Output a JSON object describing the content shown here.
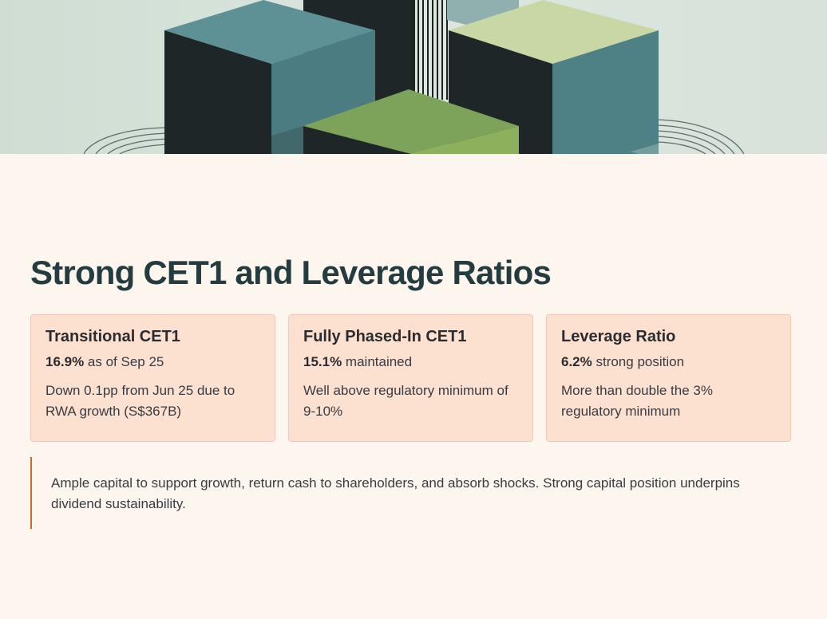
{
  "hero": {
    "image_name": "isometric-cubes-illustration",
    "colors": {
      "dark": "#1f2628",
      "teal": "#4e8186",
      "teal_light": "#6b9b9c",
      "green": "#7da35a",
      "green_light": "#c9d7a5",
      "background": "#d6e2da"
    }
  },
  "main": {
    "title": "Strong CET1 and Leverage Ratios",
    "cards": [
      {
        "heading": "Transitional CET1",
        "value": "16.9%",
        "value_suffix": " as of Sep 25",
        "description": "Down 0.1pp from Jun 25 due to RWA growth (S$367B)"
      },
      {
        "heading": "Fully Phased-In CET1",
        "value": "15.1%",
        "value_suffix": " maintained",
        "description": "Well above regulatory minimum of 9-10%"
      },
      {
        "heading": "Leverage Ratio",
        "value": "6.2%",
        "value_suffix": " strong position",
        "description": "More than double the 3% regulatory minimum"
      }
    ],
    "callout": "Ample capital to support growth, return cash to shareholders, and absorb shocks. Strong capital position underpins dividend sustainability."
  },
  "theme": {
    "background": "#fdf6ef",
    "title_color": "#243c40",
    "card_bg": "#fce1d1",
    "card_border": "#f0c9b2",
    "accent": "#c96a2e"
  }
}
